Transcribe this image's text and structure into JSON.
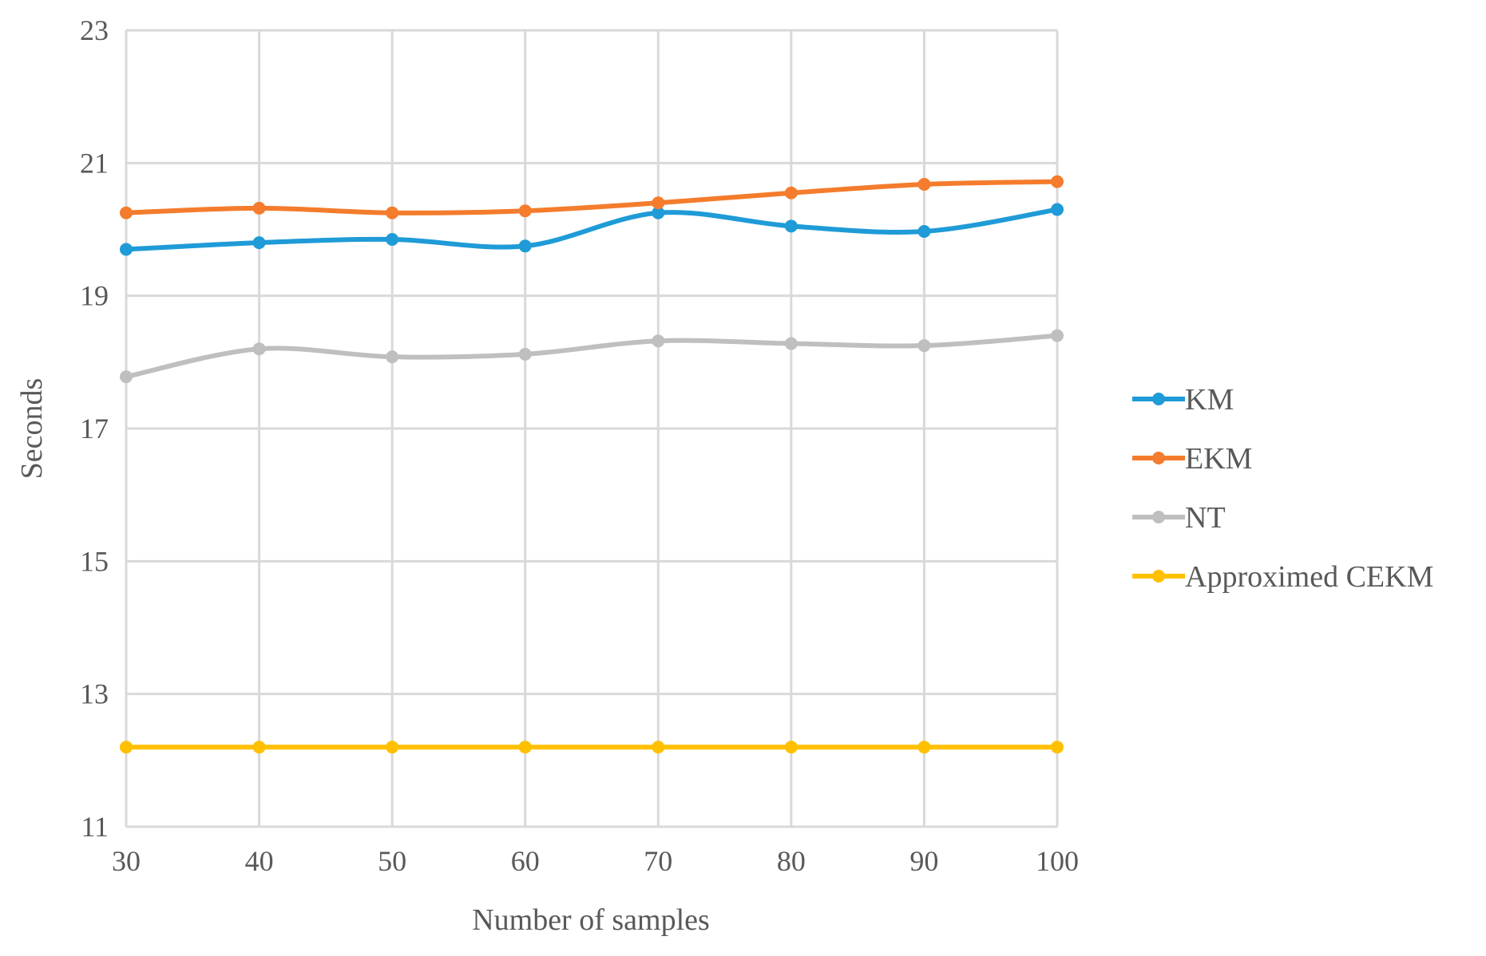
{
  "chart_data": {
    "type": "line",
    "title": "",
    "xlabel": "Number of samples",
    "ylabel": "Seconds",
    "x": [
      30,
      40,
      50,
      60,
      70,
      80,
      90,
      100
    ],
    "x_tick_labels": [
      "30",
      "40",
      "50",
      "60",
      "70",
      "80",
      "90",
      "100"
    ],
    "y_tick_labels": [
      "11",
      "13",
      "15",
      "17",
      "19",
      "21",
      "23"
    ],
    "y_ticks": [
      11,
      13,
      15,
      17,
      19,
      21,
      23
    ],
    "ylim": [
      11,
      23
    ],
    "xlim": [
      30,
      100
    ],
    "grid": true,
    "legend_position": "right",
    "smooth": true,
    "series": [
      {
        "name": "KM",
        "color": "#1f9bd7",
        "values": [
          19.7,
          19.8,
          19.85,
          19.75,
          20.25,
          20.05,
          19.97,
          20.3
        ]
      },
      {
        "name": "EKM",
        "color": "#f47c2c",
        "values": [
          20.25,
          20.32,
          20.25,
          20.28,
          20.4,
          20.55,
          20.68,
          20.72
        ]
      },
      {
        "name": "NT",
        "color": "#bfbfbf",
        "values": [
          17.78,
          18.2,
          18.08,
          18.12,
          18.32,
          18.28,
          18.25,
          18.4
        ]
      },
      {
        "name": "Approximed CEKM",
        "color": "#ffc000",
        "values": [
          12.2,
          12.2,
          12.2,
          12.2,
          12.2,
          12.2,
          12.2,
          12.2
        ]
      }
    ]
  }
}
